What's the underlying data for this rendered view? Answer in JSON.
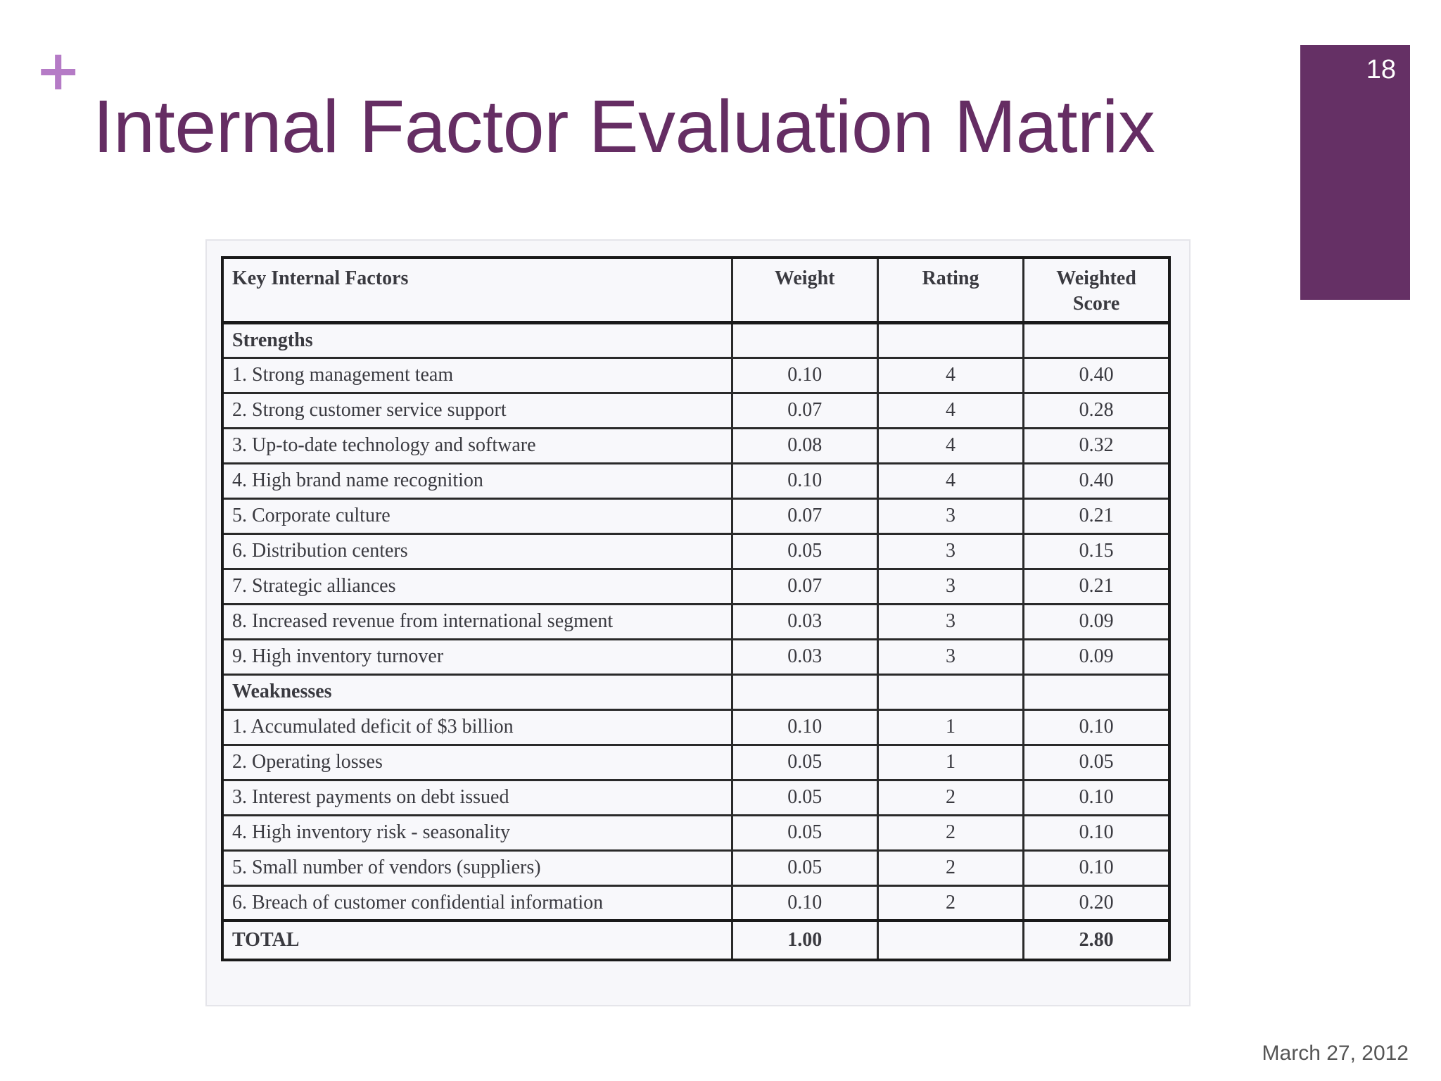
{
  "slide": {
    "title": "Internal Factor Evaluation Matrix",
    "page_number": "18",
    "date": "March 27, 2012",
    "plus_symbol": "+",
    "colors": {
      "title": "#652d63",
      "accent_bar": "#653065",
      "plus": "#b57bc6"
    }
  },
  "table": {
    "headers": {
      "factor": "Key Internal Factors",
      "weight": "Weight",
      "rating": "Rating",
      "score_line1": "Weighted",
      "score_line2": "Score"
    },
    "strengths_label": "Strengths",
    "strengths": [
      {
        "factor": "1. Strong management team",
        "weight": "0.10",
        "rating": "4",
        "score": "0.40"
      },
      {
        "factor": "2. Strong customer service support",
        "weight": "0.07",
        "rating": "4",
        "score": "0.28"
      },
      {
        "factor": "3. Up-to-date technology and software",
        "weight": "0.08",
        "rating": "4",
        "score": "0.32"
      },
      {
        "factor": "4. High brand name recognition",
        "weight": "0.10",
        "rating": "4",
        "score": "0.40"
      },
      {
        "factor": "5. Corporate culture",
        "weight": "0.07",
        "rating": "3",
        "score": "0.21"
      },
      {
        "factor": "6. Distribution centers",
        "weight": "0.05",
        "rating": "3",
        "score": "0.15"
      },
      {
        "factor": "7. Strategic alliances",
        "weight": "0.07",
        "rating": "3",
        "score": "0.21"
      },
      {
        "factor": "8. Increased revenue from international segment",
        "weight": "0.03",
        "rating": "3",
        "score": "0.09"
      },
      {
        "factor": "9. High inventory turnover",
        "weight": "0.03",
        "rating": "3",
        "score": "0.09"
      }
    ],
    "weaknesses_label": "Weaknesses",
    "weaknesses": [
      {
        "factor": "1. Accumulated deficit of $3 billion",
        "weight": "0.10",
        "rating": "1",
        "score": "0.10"
      },
      {
        "factor": "2. Operating losses",
        "weight": "0.05",
        "rating": "1",
        "score": "0.05"
      },
      {
        "factor": "3. Interest payments on debt issued",
        "weight": "0.05",
        "rating": "2",
        "score": "0.10"
      },
      {
        "factor": "4. High inventory risk - seasonality",
        "weight": "0.05",
        "rating": "2",
        "score": "0.10"
      },
      {
        "factor": "5. Small number of vendors (suppliers)",
        "weight": "0.05",
        "rating": "2",
        "score": "0.10"
      },
      {
        "factor": "6. Breach of customer confidential information",
        "weight": "0.10",
        "rating": "2",
        "score": "0.20"
      }
    ],
    "total": {
      "label": "TOTAL",
      "weight": "1.00",
      "rating": "",
      "score": "2.80"
    }
  }
}
